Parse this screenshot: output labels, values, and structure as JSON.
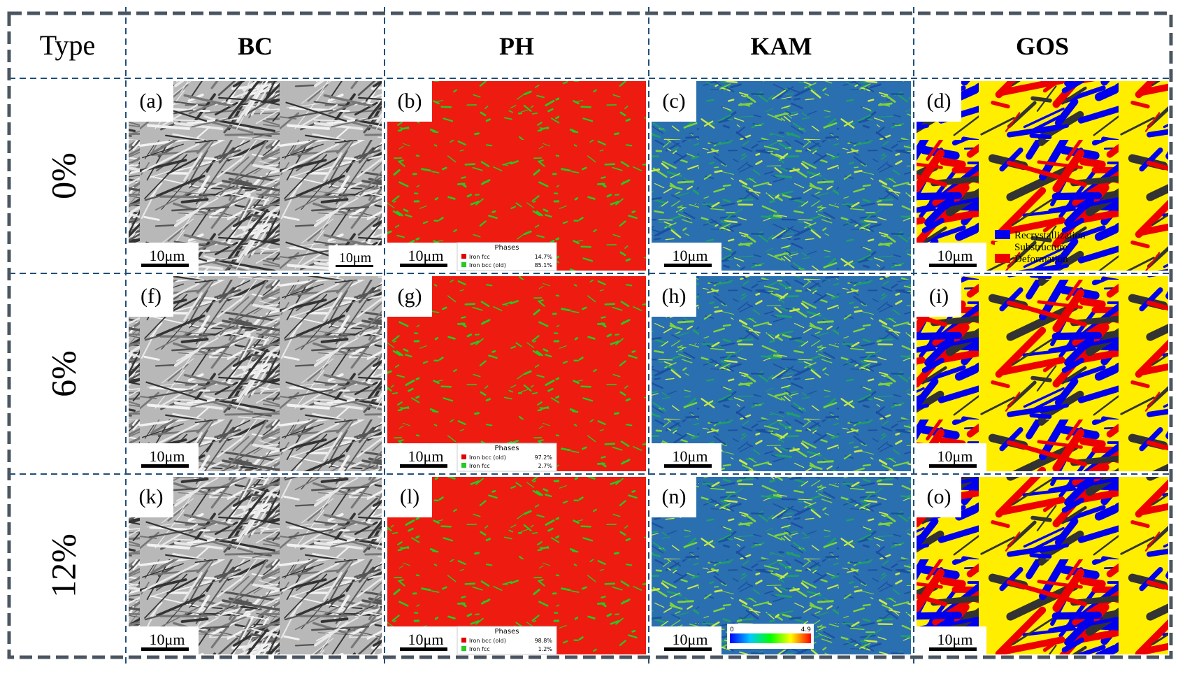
{
  "header": {
    "cells": [
      "Type",
      "BC",
      "PH",
      "KAM",
      "GOS"
    ]
  },
  "rows": [
    {
      "label": "0%",
      "panels": [
        {
          "label": "(a)",
          "scale_bar": "10μm",
          "extra_scale_bar": "10μm"
        },
        {
          "label": "(b)",
          "scale_bar": "10μm",
          "legend": {
            "title": "Phases",
            "entries": [
              {
                "name": "Iron fcc",
                "value": "14.7%",
                "color": "#e00000"
              },
              {
                "name": "Iron bcc (old)",
                "value": "85.1%",
                "color": "#22cc22"
              }
            ]
          }
        },
        {
          "label": "(c)",
          "scale_bar": "10μm"
        },
        {
          "label": "(d)",
          "scale_bar": "10μm",
          "legend": {
            "entries": [
              {
                "name": "Recrystallization",
                "color": "#0000ee"
              },
              {
                "name": "Substructure",
                "color": "#ffee00"
              },
              {
                "name": "Deformation",
                "color": "#ee0000"
              }
            ]
          }
        }
      ]
    },
    {
      "label": "6%",
      "panels": [
        {
          "label": "(f)",
          "scale_bar": "10μm"
        },
        {
          "label": "(g)",
          "scale_bar": "10μm",
          "legend": {
            "title": "Phases",
            "entries": [
              {
                "name": "Iron bcc (old)",
                "value": "97.2%",
                "color": "#e00000"
              },
              {
                "name": "Iron fcc",
                "value": "2.7%",
                "color": "#22cc22"
              }
            ]
          }
        },
        {
          "label": "(h)",
          "scale_bar": "10μm"
        },
        {
          "label": "(i)",
          "scale_bar": "10μm"
        }
      ]
    },
    {
      "label": "12%",
      "panels": [
        {
          "label": "(k)",
          "scale_bar": "10μm"
        },
        {
          "label": "(l)",
          "scale_bar": "10μm",
          "legend": {
            "title": "Phases",
            "entries": [
              {
                "name": "Iron bcc (old)",
                "value": "98.8%",
                "color": "#e00000"
              },
              {
                "name": "Iron fcc",
                "value": "1.2%",
                "color": "#22cc22"
              }
            ]
          }
        },
        {
          "label": "(n)",
          "scale_bar": "10μm",
          "colorbar": {
            "min_label": "0",
            "max_label": "4.9"
          }
        },
        {
          "label": "(o)",
          "scale_bar": "10μm"
        }
      ]
    }
  ]
}
